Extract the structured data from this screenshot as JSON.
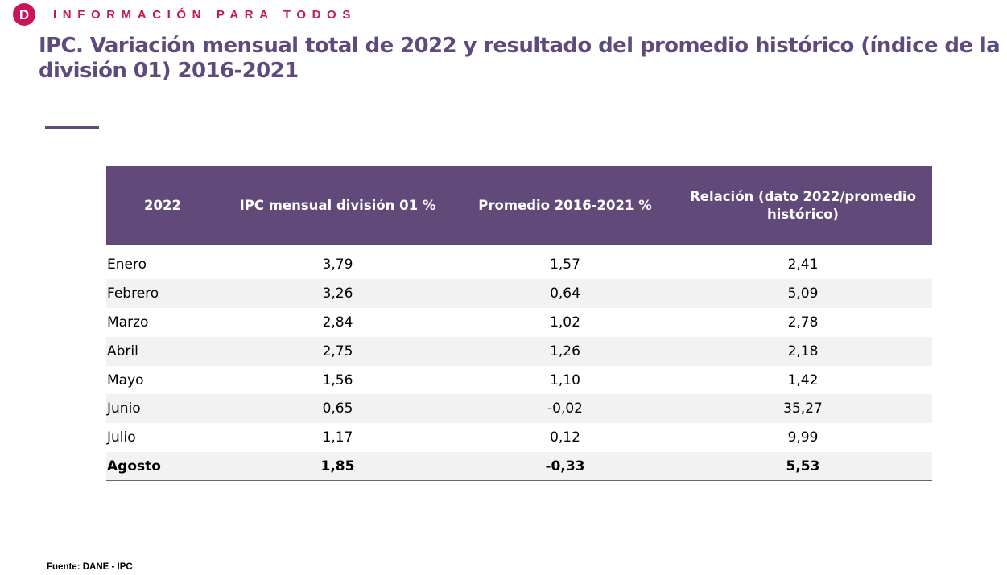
{
  "brand": {
    "logo_letter": "D",
    "tagline": "INFORMACIÓN PARA TODOS",
    "color": "#c8145a"
  },
  "title": "IPC. Variación mensual total de 2022 y resultado del promedio histórico (índice de la división 01) 2016-2021",
  "accent_color": "#5f4a7e",
  "table": {
    "headers": [
      "2022",
      "IPC mensual división 01 %",
      "Promedio 2016-2021 %",
      "Relación (dato 2022/promedio histórico)"
    ],
    "header_bg": "#614a7a",
    "rows": [
      [
        "Enero",
        "3,79",
        "1,57",
        "2,41"
      ],
      [
        "Febrero",
        "3,26",
        "0,64",
        "5,09"
      ],
      [
        "Marzo",
        "2,84",
        "1,02",
        "2,78"
      ],
      [
        "Abril",
        "2,75",
        "1,26",
        "2,18"
      ],
      [
        "Mayo",
        "1,56",
        "1,10",
        "1,42"
      ],
      [
        "Junio",
        "0,65",
        "-0,02",
        "35,27"
      ],
      [
        "Julio",
        "1,17",
        "0,12",
        "9,99"
      ],
      [
        "Agosto",
        "1,85",
        "-0,33",
        "5,53"
      ]
    ]
  },
  "source": "Fuente: DANE - IPC"
}
